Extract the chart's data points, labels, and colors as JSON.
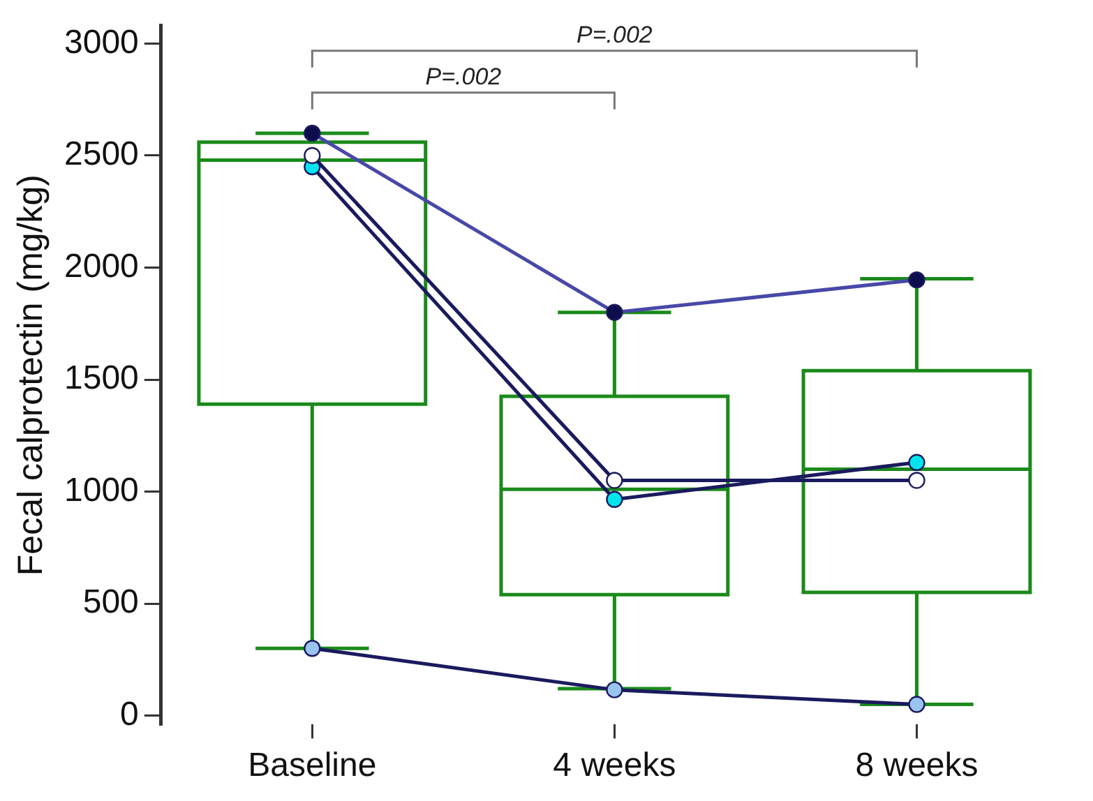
{
  "chart_data": {
    "type": "box",
    "ylabel": "Fecal calprotectin (mg/kg)",
    "categories": [
      "Baseline",
      "4 weeks",
      "8 weeks"
    ],
    "color": "#1a8a1a",
    "boxes": [
      {
        "low": 300,
        "q1": 1390,
        "median": 2480,
        "q3": 2560,
        "high": 2600
      },
      {
        "low": 120,
        "q1": 540,
        "median": 1010,
        "q3": 1425,
        "high": 1800
      },
      {
        "low": 50,
        "q1": 550,
        "median": 1100,
        "q3": 1540,
        "high": 1950
      }
    ],
    "series": [
      {
        "type": "line",
        "color": "#0d0d4d",
        "values": [
          2600,
          1800,
          1945
        ]
      },
      {
        "type": "line",
        "color": "#ffffff",
        "values": [
          2500,
          1050,
          1050
        ]
      },
      {
        "type": "line",
        "color": "#00e5ee",
        "values": [
          2450,
          965,
          1130
        ]
      },
      {
        "type": "line",
        "color": "#99c4f0",
        "values": [
          300,
          115,
          50
        ]
      }
    ],
    "marker": "circle",
    "line_style": "solid",
    "ylim": [
      -40,
      3080
    ],
    "yticks": [
      0,
      500,
      1000,
      1500,
      2000,
      2500,
      3000
    ],
    "grid": false,
    "legend": false,
    "annotations": [
      "P=.002",
      "P=.002"
    ]
  }
}
